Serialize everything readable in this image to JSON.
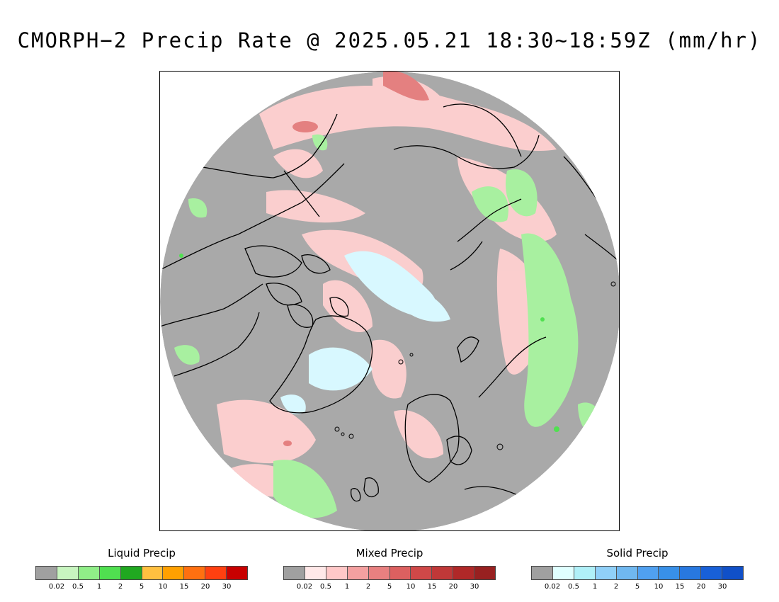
{
  "title": "CMORPH−2 Precip Rate @ 2025.05.21 18:30~18:59Z (mm/hr)",
  "map": {
    "projection": "north-polar-stereographic",
    "background_color": "#a9a9a9",
    "coastline_color": "#000000"
  },
  "legends": [
    {
      "id": "liquid",
      "title": "Liquid Precip",
      "colors": [
        "#a0a0a0",
        "#c8f5c0",
        "#90ee88",
        "#50e050",
        "#20a820",
        "#ffc040",
        "#ffa000",
        "#ff7010",
        "#ff4010",
        "#c80000"
      ],
      "ticks": [
        "0.02",
        "0.5",
        "1",
        "2",
        "5",
        "10",
        "15",
        "20",
        "30"
      ]
    },
    {
      "id": "mixed",
      "title": "Mixed Precip",
      "colors": [
        "#a0a0a0",
        "#ffe8e8",
        "#ffc8c8",
        "#f4a0a0",
        "#e88080",
        "#dc6060",
        "#d04848",
        "#c03838",
        "#b02828",
        "#982020"
      ],
      "ticks": [
        "0.02",
        "0.5",
        "1",
        "2",
        "5",
        "10",
        "15",
        "20",
        "30"
      ]
    },
    {
      "id": "solid",
      "title": "Solid Precip",
      "colors": [
        "#a0a0a0",
        "#e0ffff",
        "#b0f0f8",
        "#90d0f8",
        "#70b8f0",
        "#50a0f0",
        "#3890e8",
        "#2878e0",
        "#1860d8",
        "#1050c8"
      ],
      "ticks": [
        "0.02",
        "0.5",
        "1",
        "2",
        "5",
        "10",
        "15",
        "20",
        "30"
      ]
    }
  ]
}
